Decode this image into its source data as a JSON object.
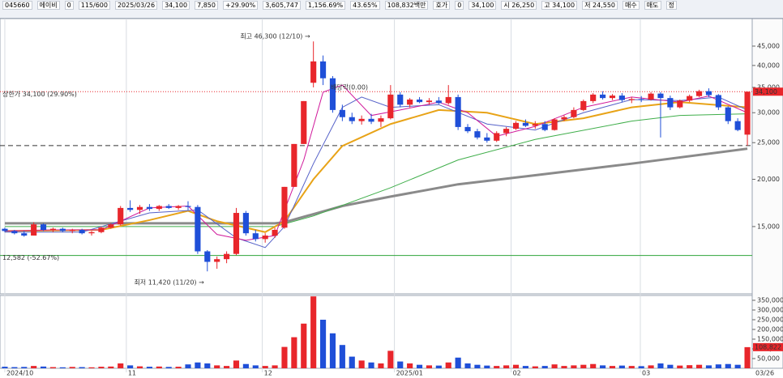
{
  "toolbar": {
    "items": [
      "045660",
      "에이비",
      "0",
      "115/600",
      "2025/03/26",
      "34,100",
      "7,850",
      "+29.90%",
      "3,605,747",
      "1,156.69%",
      "43.65%",
      "108,832백만",
      "호가",
      "0",
      "34,100",
      "시 26,250",
      "고 34,100",
      "저 24,550",
      "매수",
      "매도",
      "정"
    ]
  },
  "chart_data": {
    "type": "candlestick",
    "up_color": "#e8262b",
    "down_color": "#1f4fd8",
    "scale": "log",
    "ylim": [
      9960,
      53200
    ],
    "yticks": [
      {
        "value": 15000,
        "label": "15,000"
      },
      {
        "value": 20000,
        "label": "20,000"
      },
      {
        "value": 25000,
        "label": "25,000"
      },
      {
        "value": 30000,
        "label": "30,000"
      },
      {
        "value": 35000,
        "label": "35,000"
      },
      {
        "value": 40000,
        "label": "40,000"
      },
      {
        "value": 45000,
        "label": "45,000"
      }
    ],
    "xlim": [
      -0.5,
      77.5
    ],
    "xticks": [
      {
        "value": 0,
        "label": "2024/10"
      },
      {
        "value": 12.6,
        "label": "11"
      },
      {
        "value": 26.7,
        "label": "12"
      },
      {
        "value": 40.4,
        "label": "2025/01"
      },
      {
        "value": 52.5,
        "label": "02"
      },
      {
        "value": 65.9,
        "label": "03"
      }
    ],
    "last_date": "03/26",
    "price_label": "34,100",
    "ohlc": [
      [
        14800,
        14900,
        14500,
        14600
      ],
      [
        14600,
        14700,
        14300,
        14400
      ],
      [
        14400,
        14600,
        14100,
        14200
      ],
      [
        14200,
        15400,
        14200,
        15200
      ],
      [
        15200,
        15300,
        14600,
        14700
      ],
      [
        14700,
        14900,
        14500,
        14800
      ],
      [
        14800,
        14900,
        14500,
        14600
      ],
      [
        14600,
        14800,
        14400,
        14700
      ],
      [
        14700,
        14800,
        14300,
        14400
      ],
      [
        14400,
        14600,
        14200,
        14500
      ],
      [
        14500,
        15000,
        14400,
        14900
      ],
      [
        14900,
        15300,
        14800,
        15200
      ],
      [
        15200,
        17000,
        15100,
        16800
      ],
      [
        16800,
        17600,
        16400,
        16600
      ],
      [
        16600,
        17100,
        16200,
        16900
      ],
      [
        16900,
        17200,
        16500,
        16700
      ],
      [
        16700,
        17100,
        16500,
        17000
      ],
      [
        17000,
        17200,
        16700,
        16800
      ],
      [
        16800,
        17100,
        16600,
        17000
      ],
      [
        17000,
        17500,
        16600,
        16900
      ],
      [
        16900,
        17100,
        12700,
        12900
      ],
      [
        12900,
        13000,
        11420,
        12100
      ],
      [
        12100,
        12500,
        11600,
        12300
      ],
      [
        12300,
        12900,
        12000,
        12700
      ],
      [
        12700,
        16800,
        12600,
        16300
      ],
      [
        16300,
        16500,
        14200,
        14400
      ],
      [
        14400,
        14700,
        13700,
        13900
      ],
      [
        13900,
        14400,
        13600,
        14200
      ],
      [
        14200,
        14900,
        14000,
        14700
      ],
      [
        14900,
        19100,
        14800,
        19100
      ],
      [
        19100,
        24800,
        19100,
        24800
      ],
      [
        24800,
        32200,
        24800,
        32200
      ],
      [
        36000,
        46300,
        35000,
        41000
      ],
      [
        41000,
        42500,
        35500,
        37000
      ],
      [
        37000,
        37500,
        30000,
        30500
      ],
      [
        30500,
        31500,
        28500,
        29200
      ],
      [
        29200,
        30000,
        28000,
        28500
      ],
      [
        28500,
        29500,
        27900,
        28900
      ],
      [
        28900,
        29800,
        28000,
        28400
      ],
      [
        28400,
        29500,
        27500,
        29000
      ],
      [
        29000,
        35500,
        28800,
        33500
      ],
      [
        33500,
        34000,
        31000,
        31500
      ],
      [
        31500,
        32800,
        31000,
        32500
      ],
      [
        32500,
        33000,
        31800,
        32000
      ],
      [
        32000,
        32800,
        31500,
        32300
      ],
      [
        32300,
        33000,
        31600,
        31800
      ],
      [
        31800,
        35500,
        31500,
        33000
      ],
      [
        33000,
        33500,
        27000,
        27500
      ],
      [
        27500,
        28000,
        26500,
        26800
      ],
      [
        26800,
        27200,
        25500,
        25800
      ],
      [
        25800,
        26500,
        25000,
        25300
      ],
      [
        25300,
        26800,
        25100,
        26500
      ],
      [
        26500,
        27500,
        26000,
        27200
      ],
      [
        27200,
        28500,
        27000,
        28200
      ],
      [
        28200,
        28800,
        27500,
        27700
      ],
      [
        27700,
        28500,
        27200,
        28000
      ],
      [
        28000,
        28500,
        26800,
        27000
      ],
      [
        27000,
        29000,
        26900,
        28800
      ],
      [
        28800,
        29500,
        28500,
        29200
      ],
      [
        29200,
        31000,
        29000,
        30500
      ],
      [
        30500,
        32500,
        30300,
        32200
      ],
      [
        32200,
        33800,
        31800,
        33500
      ],
      [
        33500,
        34200,
        32500,
        32800
      ],
      [
        32800,
        33600,
        32400,
        33300
      ],
      [
        33300,
        33800,
        32000,
        32400
      ],
      [
        32400,
        33000,
        31800,
        32600
      ],
      [
        32600,
        33200,
        32000,
        32500
      ],
      [
        32500,
        34000,
        32300,
        33700
      ],
      [
        33700,
        34000,
        25800,
        32800
      ],
      [
        32800,
        33300,
        30500,
        31000
      ],
      [
        31000,
        32500,
        30800,
        32300
      ],
      [
        32300,
        33500,
        32000,
        33200
      ],
      [
        33200,
        34500,
        33000,
        34200
      ],
      [
        34200,
        34800,
        33000,
        33400
      ],
      [
        33400,
        33600,
        30500,
        31000
      ],
      [
        31000,
        31200,
        28000,
        28500
      ],
      [
        28500,
        29000,
        26800,
        27000
      ],
      [
        26250,
        34100,
        24550,
        34100
      ]
    ],
    "moving_averages": [
      {
        "color": "#8a8a8a",
        "width": 3,
        "x": [
          0,
          28,
          29,
          35,
          40,
          47,
          55,
          65,
          77
        ],
        "values": [
          15300,
          15300,
          15400,
          17000,
          18000,
          19400,
          20500,
          22000,
          24100
        ]
      },
      {
        "color": "#3fae4a",
        "width": 1,
        "x": [
          0,
          10,
          20,
          28,
          32,
          40,
          47,
          55,
          65,
          70,
          77
        ],
        "values": [
          15000,
          15000,
          15000,
          15000,
          16000,
          19000,
          22500,
          25500,
          28500,
          29500,
          29800
        ]
      },
      {
        "color": "#e8a317",
        "width": 2,
        "x": [
          0,
          10,
          15,
          19,
          22,
          27,
          29,
          32,
          35,
          40,
          45,
          50,
          55,
          60,
          65,
          70,
          77
        ],
        "values": [
          14600,
          14700,
          15600,
          16500,
          15500,
          14500,
          15500,
          20000,
          24500,
          28000,
          30500,
          30000,
          28000,
          29000,
          31000,
          32000,
          31000
        ]
      },
      {
        "color": "#5561c8",
        "width": 1,
        "x": [
          0,
          8,
          15,
          20,
          24,
          27,
          29,
          32,
          35,
          37,
          40,
          45,
          50,
          55,
          60,
          65,
          70,
          74,
          77
        ],
        "values": [
          14500,
          14500,
          16300,
          16600,
          14000,
          13200,
          15000,
          22000,
          31000,
          33000,
          31000,
          31500,
          28000,
          27000,
          30000,
          32500,
          32300,
          33000,
          30500
        ]
      },
      {
        "color": "#d0189a",
        "width": 1,
        "x": [
          0,
          5,
          10,
          15,
          19,
          22,
          25,
          28,
          31,
          33,
          35,
          38,
          41,
          45,
          48,
          51,
          55,
          60,
          65,
          70,
          73,
          77
        ],
        "values": [
          14600,
          14700,
          14700,
          16800,
          17000,
          14300,
          13800,
          14200,
          22500,
          34000,
          35500,
          29500,
          30500,
          32000,
          30000,
          26000,
          27600,
          31000,
          33000,
          32000,
          33200,
          30000
        ]
      }
    ],
    "reference_lines": [
      {
        "value": 34100,
        "color": "#e8262b",
        "style": "dotted",
        "label": "상한가 34,100 (29.90%)"
      },
      {
        "value": 12582,
        "color": "#2fa53a",
        "style": "solid",
        "label": "12,582 (-52.67%)"
      },
      {
        "value": 24550,
        "color": "#333333",
        "style": "dashed"
      }
    ],
    "annotations": [
      {
        "x": 32,
        "value": 46300,
        "text": "최고 46,300 (12/10) →",
        "color": "#e8262b"
      },
      {
        "x": 21,
        "value": 11420,
        "text": "최저 11,420 (11/20) →",
        "color": "#1f3fa8"
      },
      {
        "x": 38,
        "value": 34000,
        "text": "배당락(0.00)",
        "color": "#333333"
      }
    ],
    "volume_panel": {
      "ylim": [
        0,
        375000
      ],
      "yticks": [
        {
          "value": 50000,
          "label": "50,000"
        },
        {
          "value": 100000,
          "label": "100,000"
        },
        {
          "value": 150000,
          "label": "150,000"
        },
        {
          "value": 200000,
          "label": "200,000"
        },
        {
          "value": 250000,
          "label": "250,000"
        },
        {
          "value": 300000,
          "label": "300,000"
        },
        {
          "value": 350000,
          "label": "350,000"
        }
      ],
      "values": [
        8000,
        6000,
        7000,
        12000,
        9000,
        6000,
        5000,
        7000,
        6000,
        5000,
        8000,
        9000,
        25000,
        15000,
        10000,
        8000,
        9000,
        7000,
        8000,
        20000,
        30000,
        25000,
        15000,
        12000,
        40000,
        22000,
        15000,
        12000,
        15000,
        110000,
        160000,
        230000,
        370000,
        250000,
        180000,
        120000,
        60000,
        40000,
        30000,
        25000,
        90000,
        35000,
        25000,
        18000,
        15000,
        14000,
        30000,
        55000,
        25000,
        18000,
        14000,
        12000,
        15000,
        18000,
        12000,
        10000,
        12000,
        20000,
        12000,
        15000,
        18000,
        22000,
        15000,
        12000,
        14000,
        12000,
        11000,
        15000,
        25000,
        18000,
        14000,
        16000,
        18000,
        15000,
        20000,
        22000,
        18000,
        108822
      ],
      "value_labels": {
        "77": "108,822"
      }
    }
  }
}
